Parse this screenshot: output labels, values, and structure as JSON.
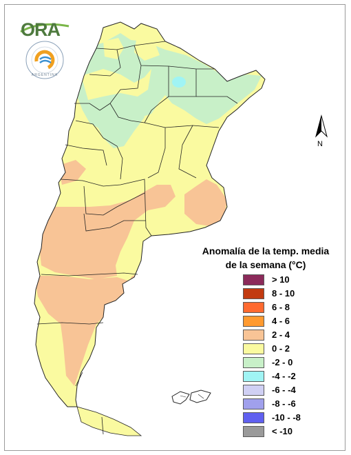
{
  "logo": {
    "text": "ORA",
    "seal_text": "ARGENTINA"
  },
  "north_arrow": {
    "label": "N"
  },
  "legend": {
    "title_line1": "Anomalía de la temp. media",
    "title_line2": "de la semana (°C)",
    "items": [
      {
        "label": "> 10",
        "color": "#8b2a5a"
      },
      {
        "label": "8 - 10",
        "color": "#c23a10"
      },
      {
        "label": "6 - 8",
        "color": "#ff6a30"
      },
      {
        "label": "4 - 6",
        "color": "#ff9a30"
      },
      {
        "label": "2 - 4",
        "color": "#f8c496"
      },
      {
        "label": "0 - 2",
        "color": "#fafaa0"
      },
      {
        "label": "-2 - 0",
        "color": "#c8f0c8"
      },
      {
        "label": "-4 - -2",
        "color": "#a0f4f4"
      },
      {
        "label": "-6 - -4",
        "color": "#d0d0f4"
      },
      {
        "label": "-8 - -6",
        "color": "#a0a0ec"
      },
      {
        "label": "-10 - -8",
        "color": "#6060f0"
      },
      {
        "label": "< -10",
        "color": "#9a9a9a"
      }
    ]
  }
}
